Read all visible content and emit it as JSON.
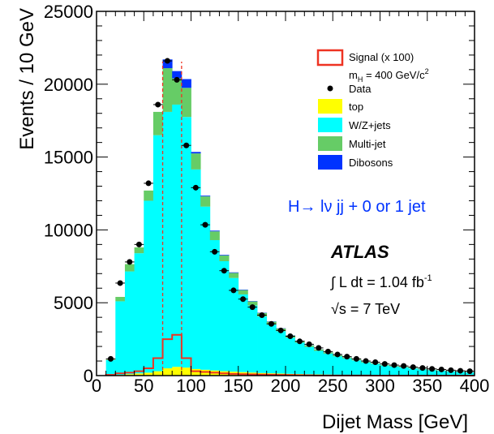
{
  "chart_data": {
    "type": "bar",
    "stacked": true,
    "xlabel": "Dijet Mass [GeV]",
    "ylabel": "Events / 10 GeV",
    "xlim": [
      0,
      400
    ],
    "ylim": [
      0,
      25000
    ],
    "bin_width": 10,
    "bin_low_edges": [
      10,
      20,
      30,
      40,
      50,
      60,
      70,
      80,
      90,
      100,
      110,
      120,
      130,
      140,
      150,
      160,
      170,
      180,
      190,
      200,
      210,
      220,
      230,
      240,
      250,
      260,
      270,
      280,
      290,
      300,
      310,
      320,
      330,
      340,
      350,
      360,
      370,
      380,
      390
    ],
    "x_ticks": [
      0,
      50,
      100,
      150,
      200,
      250,
      300,
      350,
      400
    ],
    "x_tick_labels": [
      "0",
      "50",
      "100",
      "150",
      "200",
      "250",
      "300",
      "350",
      "400"
    ],
    "y_ticks": [
      0,
      5000,
      10000,
      15000,
      20000,
      25000
    ],
    "y_tick_labels": [
      "0",
      "5000",
      "10000",
      "15000",
      "20000",
      "25000"
    ],
    "series": [
      {
        "name": "top",
        "color": "#ffff00",
        "values": [
          10,
          50,
          100,
          150,
          200,
          300,
          500,
          600,
          550,
          450,
          400,
          350,
          300,
          270,
          240,
          210,
          180,
          160,
          140,
          120,
          105,
          90,
          80,
          70,
          60,
          50,
          45,
          40,
          35,
          30,
          27,
          24,
          21,
          18,
          15,
          13,
          11,
          9,
          8
        ]
      },
      {
        "name": "W/Z+jets",
        "color": "#00ffff",
        "values": [
          1050,
          5050,
          7050,
          8250,
          11800,
          16200,
          17600,
          18000,
          17200,
          13700,
          11200,
          8950,
          7550,
          6430,
          5330,
          4600,
          3880,
          3340,
          2910,
          2480,
          2160,
          1880,
          1620,
          1440,
          1260,
          1130,
          995,
          860,
          765,
          660,
          595,
          536,
          469,
          402,
          355,
          317,
          279,
          241,
          212
        ]
      },
      {
        "name": "Multi-jet",
        "color": "#66cc66",
        "values": [
          40,
          300,
          500,
          400,
          700,
          1600,
          3000,
          1800,
          2000,
          1100,
          700,
          600,
          400,
          350,
          300,
          280,
          240,
          200,
          180,
          150,
          125,
          110,
          100,
          90,
          80,
          70,
          60,
          50,
          50,
          45,
          40,
          38,
          35,
          30,
          28,
          25,
          22,
          20,
          18
        ]
      },
      {
        "name": "Dibosons",
        "color": "#0033ff",
        "values": [
          0,
          0,
          0,
          0,
          0,
          0,
          600,
          500,
          600,
          100,
          50,
          50,
          40,
          35,
          30,
          25,
          20,
          18,
          15,
          12,
          10,
          10,
          8,
          7,
          6,
          5,
          5,
          4,
          4,
          3,
          3,
          3,
          2,
          2,
          2,
          2,
          2,
          2,
          2
        ]
      }
    ],
    "data": {
      "name": "Data",
      "x_centers": [
        15,
        25,
        35,
        45,
        55,
        65,
        75,
        85,
        95,
        105,
        115,
        125,
        135,
        145,
        155,
        165,
        175,
        185,
        195,
        205,
        215,
        225,
        235,
        245,
        255,
        265,
        275,
        285,
        295,
        305,
        315,
        325,
        335,
        345,
        355,
        365,
        375,
        385,
        395
      ],
      "values": [
        1150,
        6350,
        7800,
        9000,
        13200,
        18600,
        21600,
        20300,
        15800,
        12900,
        10350,
        8500,
        7200,
        5850,
        5250,
        4700,
        4150,
        3550,
        3100,
        2700,
        2350,
        2150,
        1900,
        1650,
        1450,
        1300,
        1150,
        1000,
        920,
        800,
        720,
        660,
        580,
        520,
        460,
        420,
        370,
        330,
        300
      ]
    },
    "signal": {
      "name": "Signal (x 100)",
      "color": "#ee3322",
      "values": [
        50,
        150,
        200,
        300,
        500,
        1200,
        2500,
        2800,
        1200,
        300,
        250,
        200,
        150,
        120,
        100,
        80,
        70,
        60,
        50,
        40,
        30,
        20,
        10,
        10,
        5,
        5,
        5,
        5,
        0,
        0,
        0,
        0,
        0,
        0,
        0,
        0,
        0,
        0,
        0
      ],
      "window_lines_x": [
        70,
        90
      ]
    },
    "legend": {
      "placement": "top-right",
      "signal_label": "Signal (x 100)",
      "mass_prefix": "m",
      "mass_sub": "H",
      "mass_value": " = 400 GeV/c",
      "mass_sup": "2",
      "data_label": "Data",
      "top_label": "top",
      "wz_label": "W/Z+jets",
      "multijet_label": "Multi-jet",
      "diboson_label": "Dibosons"
    },
    "annotations": {
      "channel": "H→ lν jj + 0 or 1 jet",
      "experiment": "ATLAS",
      "lumi_prefix": "∫ L dt = 1.04 fb",
      "lumi_sup": "-1",
      "energy": "√s = 7 TeV"
    },
    "colors": {
      "channel_text": "#0033ff",
      "signal_line": "#ee3322",
      "data_marker": "#000000",
      "frame": "#000000"
    }
  }
}
